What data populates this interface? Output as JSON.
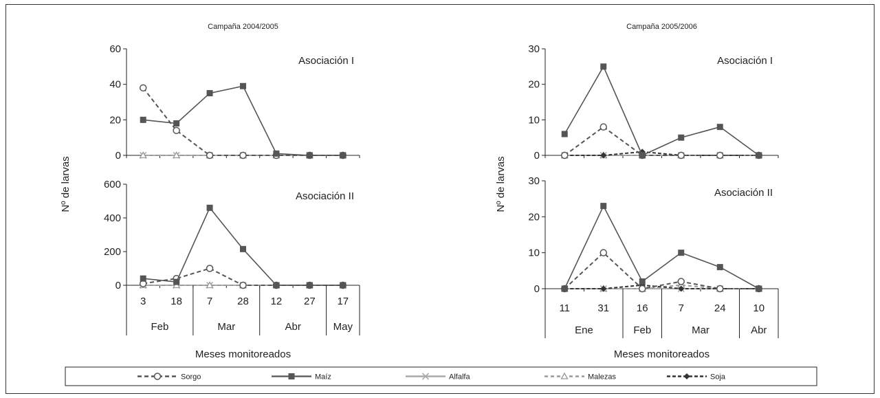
{
  "colors": {
    "ink": "#222222",
    "maiz": "#555555",
    "sorgo": "#555555",
    "alfalfa": "#aaaaaa",
    "malezas": "#999999",
    "soja": "#333333"
  },
  "figure": {
    "ylabel": "Nº de larvas",
    "legend": [
      {
        "key": "sorgo",
        "label": "Sorgo",
        "marker": "circle",
        "dash": "dashed"
      },
      {
        "key": "maiz",
        "label": "Maíz",
        "marker": "square",
        "dash": "solid"
      },
      {
        "key": "alfalfa",
        "label": "Alfalfa",
        "marker": "cross",
        "dash": "solid"
      },
      {
        "key": "malezas",
        "label": "Malezas",
        "marker": "triangle",
        "dash": "dashed"
      },
      {
        "key": "soja",
        "label": "Soja",
        "marker": "diamond",
        "dash": "dashed"
      }
    ]
  },
  "chart_data": [
    {
      "type": "line",
      "campaign": "Campaña 2004/2005",
      "xlabel": "Meses monitoreados",
      "ylabel": "Nº de larvas",
      "x": [
        "3",
        "18",
        "7",
        "28",
        "12",
        "27",
        "17"
      ],
      "months": [
        {
          "label": "Feb",
          "span": 2
        },
        {
          "label": "Mar",
          "span": 2
        },
        {
          "label": "Abr",
          "span": 2
        },
        {
          "label": "May",
          "span": 1
        }
      ],
      "panels": [
        {
          "title": "Asociación I",
          "ylim": [
            0,
            60
          ],
          "yticks": [
            0,
            20,
            40,
            60
          ],
          "series": [
            {
              "name": "Sorgo",
              "values": [
                38,
                14,
                0,
                0,
                0,
                0,
                0
              ]
            },
            {
              "name": "Maíz",
              "values": [
                20,
                18,
                35,
                39,
                1,
                0,
                0
              ]
            },
            {
              "name": "Alfalfa",
              "values": [
                0,
                0,
                0,
                0,
                0,
                0,
                0
              ]
            },
            {
              "name": "Malezas",
              "values": [
                0,
                0,
                0,
                0,
                0,
                0,
                0
              ]
            }
          ]
        },
        {
          "title": "Asociación II",
          "ylim": [
            0,
            600
          ],
          "yticks": [
            0,
            200,
            400,
            600
          ],
          "series": [
            {
              "name": "Sorgo",
              "values": [
                10,
                40,
                100,
                0,
                0,
                0,
                0
              ]
            },
            {
              "name": "Maíz",
              "values": [
                40,
                20,
                460,
                215,
                0,
                0,
                0
              ]
            },
            {
              "name": "Alfalfa",
              "values": [
                0,
                0,
                0,
                0,
                0,
                0,
                0
              ]
            },
            {
              "name": "Malezas",
              "values": [
                0,
                0,
                0,
                0,
                0,
                0,
                0
              ]
            }
          ]
        }
      ]
    },
    {
      "type": "line",
      "campaign": "Campaña 2005/2006",
      "xlabel": "Meses monitoreados",
      "ylabel": "Nº de larvas",
      "x": [
        "11",
        "31",
        "16",
        "7",
        "24",
        "10"
      ],
      "months": [
        {
          "label": "Ene",
          "span": 2
        },
        {
          "label": "Feb",
          "span": 1
        },
        {
          "label": "Mar",
          "span": 2
        },
        {
          "label": "Abr",
          "span": 1
        }
      ],
      "panels": [
        {
          "title": "Asociación I",
          "ylim": [
            0,
            30
          ],
          "yticks": [
            0,
            10,
            20,
            30
          ],
          "series": [
            {
              "name": "Sorgo",
              "values": [
                0,
                8,
                0,
                0,
                0,
                0
              ]
            },
            {
              "name": "Maíz",
              "values": [
                6,
                25,
                0,
                5,
                8,
                0
              ]
            },
            {
              "name": "Alfalfa",
              "values": [
                0,
                0,
                0,
                0,
                0,
                0
              ]
            },
            {
              "name": "Malezas",
              "values": [
                0,
                0,
                0,
                0,
                0,
                0
              ]
            },
            {
              "name": "Soja",
              "values": [
                0,
                0,
                1,
                0,
                0,
                0
              ]
            }
          ]
        },
        {
          "title": "Asociación II",
          "ylim": [
            0,
            30
          ],
          "yticks": [
            0,
            10,
            20,
            30
          ],
          "series": [
            {
              "name": "Sorgo",
              "values": [
                0,
                10,
                0,
                2,
                0,
                0
              ]
            },
            {
              "name": "Maíz",
              "values": [
                0,
                23,
                2,
                10,
                6,
                0
              ]
            },
            {
              "name": "Alfalfa",
              "values": [
                0,
                0,
                0,
                0,
                0,
                0
              ]
            },
            {
              "name": "Malezas",
              "values": [
                0,
                0,
                0,
                1,
                0,
                0
              ]
            },
            {
              "name": "Soja",
              "values": [
                0,
                0,
                1,
                0,
                0,
                0
              ]
            }
          ]
        }
      ]
    }
  ]
}
